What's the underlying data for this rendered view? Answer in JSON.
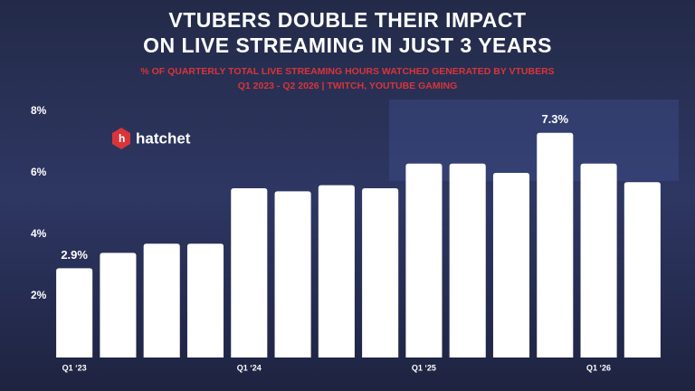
{
  "chart_data": {
    "type": "bar",
    "title": [
      "VTUBERS DOUBLE THEIR IMPACT",
      "ON LIVE STREAMING IN JUST 3 YEARS"
    ],
    "subtitle": [
      "% OF QUARTERLY TOTAL LIVE STREAMING HOURS WATCHED GENERATED BY VTUBERS",
      "Q1 2023 - Q2 2026 | TWITCH, YOUTUBE GAMING"
    ],
    "logo": "hatchet",
    "categories": [
      "Q1 ‘23",
      null,
      null,
      null,
      "Q1 ‘24",
      null,
      null,
      null,
      "Q1 ‘25",
      null,
      null,
      null,
      "Q1 ‘26",
      null
    ],
    "values": [
      2.9,
      3.4,
      3.7,
      3.7,
      5.5,
      5.4,
      5.6,
      5.5,
      6.3,
      6.3,
      6.0,
      7.3,
      6.3,
      5.7
    ],
    "value_labels": [
      "2.9%",
      null,
      null,
      null,
      null,
      null,
      null,
      null,
      null,
      null,
      null,
      "7.3%",
      null,
      null
    ],
    "color": "#ffffff",
    "ylim": [
      0,
      8
    ],
    "yticks": [
      {
        "value": 2,
        "label": "2%"
      },
      {
        "value": 4,
        "label": "4%"
      },
      {
        "value": 6,
        "label": "6%"
      },
      {
        "value": 8,
        "label": "8%"
      }
    ],
    "grid": false
  }
}
